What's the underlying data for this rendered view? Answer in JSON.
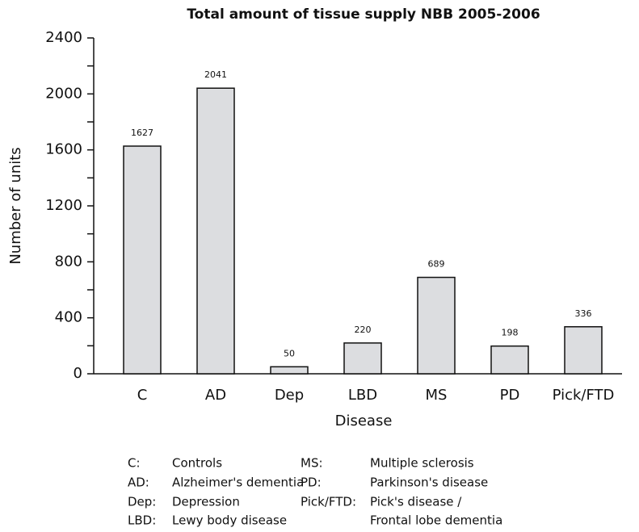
{
  "chart_data": {
    "type": "bar",
    "title": "Total amount of tissue supply NBB 2005-2006",
    "x_label": "Disease",
    "y_label": "Number of units",
    "categories": [
      "C",
      "AD",
      "Dep",
      "LBD",
      "MS",
      "PD",
      "Pick/FTD"
    ],
    "values": [
      1627,
      2041,
      50,
      220,
      689,
      198,
      336
    ],
    "color": "#dcdde0",
    "ylim": [
      0,
      2400
    ],
    "yticks": [
      0,
      400,
      800,
      1200,
      1600,
      2000,
      2400
    ],
    "yticks_minor": [
      200,
      600,
      1000,
      1400,
      1800,
      2200
    ],
    "grid": false,
    "notes": [
      {
        "abbr": "C:",
        "lines": [
          "Controls"
        ]
      },
      {
        "abbr": "AD:",
        "lines": [
          "Alzheimer's dementia"
        ]
      },
      {
        "abbr": "Dep:",
        "lines": [
          "Depression"
        ]
      },
      {
        "abbr": "LBD:",
        "lines": [
          "Lewy body disease"
        ]
      },
      {
        "abbr": "MS:",
        "lines": [
          "Multiple sclerosis"
        ]
      },
      {
        "abbr": "PD:",
        "lines": [
          "Parkinson's disease"
        ]
      },
      {
        "abbr": "Pick/FTD:",
        "lines": [
          "Pick's disease /",
          "Frontal lobe dementia"
        ]
      }
    ]
  }
}
